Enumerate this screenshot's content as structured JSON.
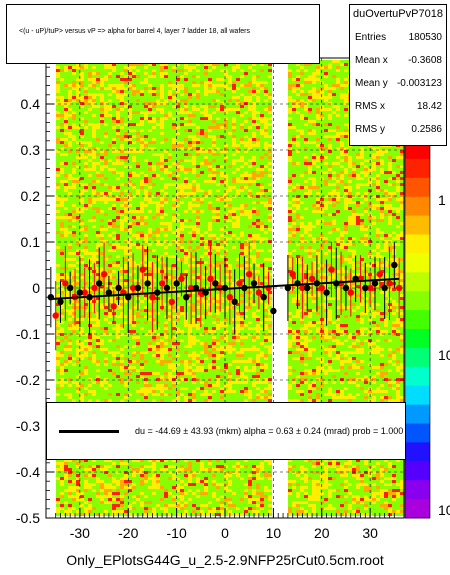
{
  "title": "<(u - uP)/tuP> versus   vP => alpha for barrel 4, layer 7 ladder 18, all wafers",
  "stats": {
    "name": "duOvertuPvP7018",
    "rows": [
      {
        "key": "Entries",
        "value": "180530"
      },
      {
        "key": "Mean x",
        "value": "-0.3608"
      },
      {
        "key": "Mean y",
        "value": "-0.003123"
      },
      {
        "key": "RMS x",
        "value": "18.42"
      },
      {
        "key": "RMS y",
        "value": "0.2586"
      }
    ]
  },
  "fit_text": "du =  -44.69 ±  43.93 (mkm) alpha =    0.63 ±  0.24 (mrad) prob = 1.000",
  "footer": "Only_EPlotsG44G_u_2.5-2.9NFP25rCut0.5cm.root",
  "colors": {
    "background": "#ffffff",
    "frame": "#000000",
    "heat_low": "#88ff00",
    "heat_mid": "#ffee00",
    "heat_high": "#ff2200",
    "red_markers": "#ff0000",
    "black_markers": "#000000"
  },
  "chart_data": {
    "type": "scatter",
    "xlim": [
      -37,
      37
    ],
    "ylim": [
      -0.5,
      0.5
    ],
    "x_ticks": [
      -30,
      -20,
      -10,
      0,
      10,
      20,
      30
    ],
    "y_ticks": [
      -0.5,
      -0.4,
      -0.3,
      -0.2,
      -0.1,
      0,
      0.1,
      0.2,
      0.3,
      0.4
    ],
    "y_tick_labels": [
      "-0.5",
      "-0.4",
      "-0.3",
      "-0.2",
      "-0.1",
      "0",
      "0.1",
      "0.2",
      "0.3",
      "0.4"
    ],
    "x_tick_labels": [
      "-30",
      "-20",
      "-10",
      "0",
      "10",
      "20",
      "30"
    ],
    "colorbar_labels": [
      "1",
      "10",
      "10"
    ],
    "heat_gap_x": [
      9.5,
      13
    ],
    "series": [
      {
        "color": "red",
        "x": [
          -35,
          -33,
          -31,
          -29,
          -27,
          -25,
          -23,
          -21,
          -19,
          -17,
          -15,
          -13,
          -11,
          -9,
          -7,
          -5,
          -3,
          -1,
          1,
          3,
          5,
          7,
          9,
          14,
          16,
          18,
          20,
          22,
          24,
          26,
          28,
          30,
          32,
          34,
          36
        ],
        "y": [
          -0.06,
          0.01,
          -0.02,
          -0.01,
          0.0,
          0.03,
          -0.04,
          -0.01,
          0.0,
          0.04,
          -0.02,
          0.01,
          -0.03,
          0.02,
          0.0,
          -0.01,
          0.02,
          0.0,
          -0.02,
          0.01,
          0.03,
          -0.01,
          0.0,
          0.03,
          0.0,
          0.02,
          0.0,
          0.04,
          0.01,
          -0.01,
          0.02,
          0.0,
          0.03,
          0.01,
          0.0
        ]
      },
      {
        "color": "black",
        "x": [
          -36,
          -34,
          -32,
          -30,
          -28,
          -26,
          -24,
          -22,
          -20,
          -18,
          -16,
          -14,
          -12,
          -10,
          -8,
          -6,
          -4,
          -2,
          0,
          2,
          4,
          6,
          8,
          10,
          13,
          15,
          17,
          19,
          21,
          23,
          25,
          27,
          29,
          31,
          33,
          35
        ],
        "y": [
          -0.02,
          -0.03,
          0.0,
          -0.01,
          -0.02,
          0.01,
          -0.01,
          0.0,
          -0.02,
          0.0,
          0.01,
          -0.01,
          0.0,
          0.01,
          -0.02,
          0.0,
          -0.01,
          0.01,
          0.0,
          -0.03,
          0.0,
          0.01,
          -0.02,
          -0.05,
          0.0,
          0.01,
          0.0,
          0.01,
          -0.01,
          0.01,
          0.0,
          0.02,
          0.0,
          0.01,
          0.0,
          0.05
        ]
      }
    ],
    "fit_line": {
      "x": [
        -36,
        36
      ],
      "y": [
        -0.024,
        0.02
      ]
    }
  }
}
